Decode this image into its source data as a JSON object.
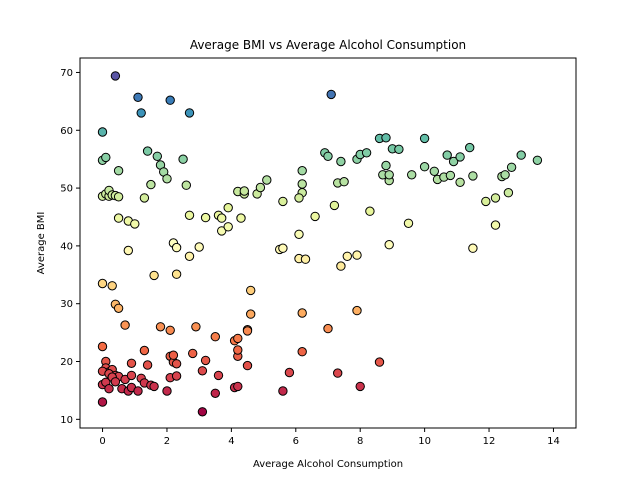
{
  "chart_data": {
    "type": "scatter",
    "title": "Average BMI vs Average Alcohol Consumption",
    "xlabel": "Average Alcohol Consumption",
    "ylabel": "Average BMI",
    "xlim": [
      -0.7,
      14.7
    ],
    "ylim": [
      8.5,
      72.5
    ],
    "xticks": [
      0,
      2,
      4,
      6,
      8,
      10,
      12,
      14
    ],
    "yticks": [
      10,
      20,
      30,
      40,
      50,
      60,
      70
    ],
    "grid": false,
    "legend": "none",
    "marker_edge_color": "#000000",
    "colormap": "Spectral",
    "color_range": [
      11,
      70
    ],
    "points": [
      [
        0.4,
        69.4
      ],
      [
        1.1,
        65.7
      ],
      [
        1.2,
        63.0
      ],
      [
        2.1,
        65.2
      ],
      [
        2.7,
        63.0
      ],
      [
        7.1,
        66.2
      ],
      [
        0.0,
        59.7
      ],
      [
        0.0,
        54.8
      ],
      [
        0.1,
        55.3
      ],
      [
        0.5,
        53.0
      ],
      [
        1.4,
        56.4
      ],
      [
        1.5,
        50.6
      ],
      [
        1.7,
        55.5
      ],
      [
        1.8,
        54.0
      ],
      [
        1.9,
        52.8
      ],
      [
        2.0,
        51.6
      ],
      [
        2.5,
        55.0
      ],
      [
        2.6,
        50.5
      ],
      [
        6.2,
        53.0
      ],
      [
        6.2,
        50.7
      ],
      [
        6.2,
        49.2
      ],
      [
        6.9,
        56.1
      ],
      [
        7.0,
        55.5
      ],
      [
        7.3,
        50.9
      ],
      [
        7.4,
        54.6
      ],
      [
        7.5,
        51.1
      ],
      [
        7.9,
        55.0
      ],
      [
        8.0,
        55.8
      ],
      [
        8.2,
        56.1
      ],
      [
        8.6,
        58.6
      ],
      [
        8.7,
        52.3
      ],
      [
        8.8,
        58.7
      ],
      [
        8.8,
        53.9
      ],
      [
        8.9,
        51.3
      ],
      [
        8.9,
        52.3
      ],
      [
        9.0,
        56.8
      ],
      [
        9.2,
        56.7
      ],
      [
        9.6,
        52.3
      ],
      [
        10.0,
        58.6
      ],
      [
        10.0,
        53.7
      ],
      [
        10.3,
        52.9
      ],
      [
        10.4,
        51.5
      ],
      [
        10.6,
        51.9
      ],
      [
        10.7,
        55.7
      ],
      [
        10.8,
        52.2
      ],
      [
        10.9,
        54.6
      ],
      [
        11.1,
        55.4
      ],
      [
        11.1,
        51.0
      ],
      [
        11.4,
        57.0
      ],
      [
        11.5,
        52.1
      ],
      [
        11.9,
        47.7
      ],
      [
        12.2,
        48.3
      ],
      [
        12.4,
        52.0
      ],
      [
        12.5,
        52.3
      ],
      [
        12.6,
        49.2
      ],
      [
        12.7,
        53.6
      ],
      [
        13.0,
        55.7
      ],
      [
        13.5,
        54.8
      ],
      [
        0.0,
        48.6
      ],
      [
        0.1,
        49.0
      ],
      [
        0.2,
        48.6
      ],
      [
        0.2,
        49.6
      ],
      [
        0.3,
        48.8
      ],
      [
        0.4,
        48.7
      ],
      [
        0.5,
        48.5
      ],
      [
        0.5,
        44.8
      ],
      [
        0.8,
        44.3
      ],
      [
        1.0,
        43.8
      ],
      [
        1.3,
        48.3
      ],
      [
        2.7,
        45.3
      ],
      [
        3.2,
        44.9
      ],
      [
        3.6,
        45.3
      ],
      [
        3.7,
        44.8
      ],
      [
        3.7,
        42.6
      ],
      [
        3.9,
        43.3
      ],
      [
        3.9,
        46.6
      ],
      [
        4.2,
        49.4
      ],
      [
        4.3,
        44.8
      ],
      [
        4.4,
        49.0
      ],
      [
        4.4,
        49.5
      ],
      [
        4.8,
        49.0
      ],
      [
        4.9,
        50.1
      ],
      [
        5.1,
        51.4
      ],
      [
        5.6,
        47.7
      ],
      [
        6.1,
        48.3
      ],
      [
        6.6,
        45.1
      ],
      [
        7.2,
        47.0
      ],
      [
        8.3,
        46.0
      ],
      [
        0.8,
        39.2
      ],
      [
        2.2,
        40.5
      ],
      [
        2.3,
        39.7
      ],
      [
        2.7,
        38.2
      ],
      [
        3.0,
        39.8
      ],
      [
        5.5,
        39.4
      ],
      [
        5.6,
        39.6
      ],
      [
        6.1,
        42.0
      ],
      [
        6.1,
        37.8
      ],
      [
        6.3,
        37.7
      ],
      [
        7.4,
        36.5
      ],
      [
        7.6,
        38.2
      ],
      [
        7.9,
        38.4
      ],
      [
        8.9,
        40.2
      ],
      [
        9.5,
        43.9
      ],
      [
        11.5,
        39.6
      ],
      [
        12.2,
        43.6
      ],
      [
        0.0,
        33.5
      ],
      [
        0.3,
        33.1
      ],
      [
        0.4,
        29.9
      ],
      [
        0.5,
        29.2
      ],
      [
        1.6,
        34.9
      ],
      [
        2.3,
        35.1
      ],
      [
        4.6,
        32.3
      ],
      [
        0.7,
        26.3
      ],
      [
        1.8,
        26.0
      ],
      [
        2.1,
        25.4
      ],
      [
        2.9,
        26.0
      ],
      [
        3.5,
        24.3
      ],
      [
        4.1,
        23.6
      ],
      [
        4.5,
        25.5
      ],
      [
        4.6,
        28.2
      ],
      [
        6.2,
        28.4
      ],
      [
        7.0,
        25.7
      ],
      [
        7.9,
        28.8
      ],
      [
        0.0,
        22.6
      ],
      [
        0.1,
        20.0
      ],
      [
        0.1,
        18.9
      ],
      [
        0.2,
        18.2
      ],
      [
        0.3,
        18.6
      ],
      [
        0.4,
        17.6
      ],
      [
        0.5,
        17.4
      ],
      [
        0.7,
        16.9
      ],
      [
        0.9,
        19.7
      ],
      [
        1.3,
        21.9
      ],
      [
        1.4,
        19.4
      ],
      [
        2.1,
        20.9
      ],
      [
        2.2,
        19.9
      ],
      [
        2.3,
        19.6
      ],
      [
        2.2,
        21.1
      ],
      [
        2.8,
        21.4
      ],
      [
        3.1,
        18.4
      ],
      [
        3.2,
        20.2
      ],
      [
        3.6,
        17.6
      ],
      [
        4.2,
        20.9
      ],
      [
        4.2,
        22.0
      ],
      [
        4.2,
        24.0
      ],
      [
        4.5,
        25.3
      ],
      [
        4.5,
        19.3
      ],
      [
        5.8,
        18.1
      ],
      [
        6.2,
        21.7
      ],
      [
        7.3,
        18.0
      ],
      [
        8.6,
        19.9
      ],
      [
        0.0,
        18.3
      ],
      [
        0.0,
        16.0
      ],
      [
        0.1,
        16.4
      ],
      [
        0.2,
        17.9
      ],
      [
        0.2,
        15.3
      ],
      [
        0.3,
        17.3
      ],
      [
        0.4,
        16.5
      ],
      [
        0.6,
        15.3
      ],
      [
        0.8,
        14.9
      ],
      [
        0.9,
        15.5
      ],
      [
        0.9,
        17.6
      ],
      [
        1.1,
        14.9
      ],
      [
        1.2,
        17.1
      ],
      [
        1.3,
        16.3
      ],
      [
        1.5,
        15.9
      ],
      [
        1.6,
        15.7
      ],
      [
        2.0,
        14.9
      ],
      [
        2.1,
        17.2
      ],
      [
        2.3,
        17.5
      ],
      [
        3.5,
        14.5
      ],
      [
        4.1,
        15.5
      ],
      [
        4.2,
        15.7
      ],
      [
        5.6,
        14.9
      ],
      [
        8.0,
        15.7
      ],
      [
        0.0,
        13.0
      ],
      [
        3.1,
        11.3
      ]
    ]
  }
}
